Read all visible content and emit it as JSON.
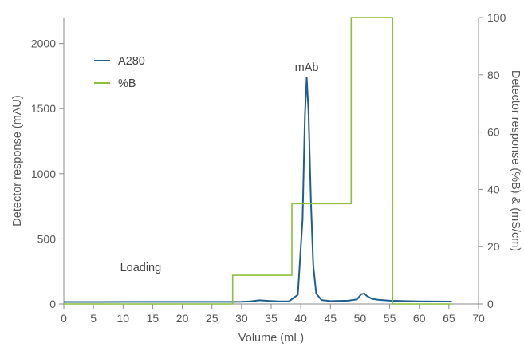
{
  "chart_data": {
    "type": "line",
    "xlabel": "Volume (mL)",
    "ylabel": "Detector response (mAU)",
    "y2label": "Detector response (%B) & (mS/cm)",
    "xlim": [
      0,
      70
    ],
    "ylim": [
      0,
      2200
    ],
    "y2lim": [
      0,
      100
    ],
    "x_ticks": [
      0,
      5,
      10,
      15,
      20,
      25,
      30,
      35,
      40,
      45,
      50,
      55,
      60,
      65,
      70
    ],
    "y_ticks": [
      0,
      500,
      1000,
      1500,
      2000
    ],
    "y2_ticks": [
      0,
      20,
      40,
      60,
      80,
      100
    ],
    "grid": false,
    "legend_position": "top-left",
    "series": [
      {
        "name": "A280",
        "axis": "left",
        "color": "#1f5f8f",
        "x": [
          0,
          10,
          20,
          28,
          30,
          31.5,
          33,
          34.5,
          36,
          38,
          39.5,
          40.3,
          40.7,
          41.0,
          41.3,
          41.7,
          42.1,
          42.6,
          43.5,
          45,
          48,
          49.5,
          50.2,
          50.7,
          51.2,
          52,
          53,
          55,
          60,
          65.5
        ],
        "y": [
          15,
          16,
          16,
          16,
          17,
          20,
          28,
          24,
          21,
          20,
          70,
          650,
          1450,
          1740,
          1480,
          800,
          300,
          80,
          30,
          22,
          25,
          35,
          75,
          80,
          60,
          40,
          32,
          25,
          20,
          18
        ]
      },
      {
        "name": "%B",
        "axis": "right",
        "color": "#8cbe3f",
        "x": [
          0,
          28.5,
          28.5,
          38.5,
          38.5,
          48.5,
          48.5,
          55.5,
          55.5,
          65.5
        ],
        "y": [
          0,
          0,
          10,
          10,
          35,
          35,
          100,
          100,
          0,
          0
        ]
      }
    ],
    "annotations": [
      {
        "text": "mAb",
        "x": 41,
        "y": 1790
      },
      {
        "text": "Loading",
        "x": 9.5,
        "y": 250
      }
    ]
  }
}
